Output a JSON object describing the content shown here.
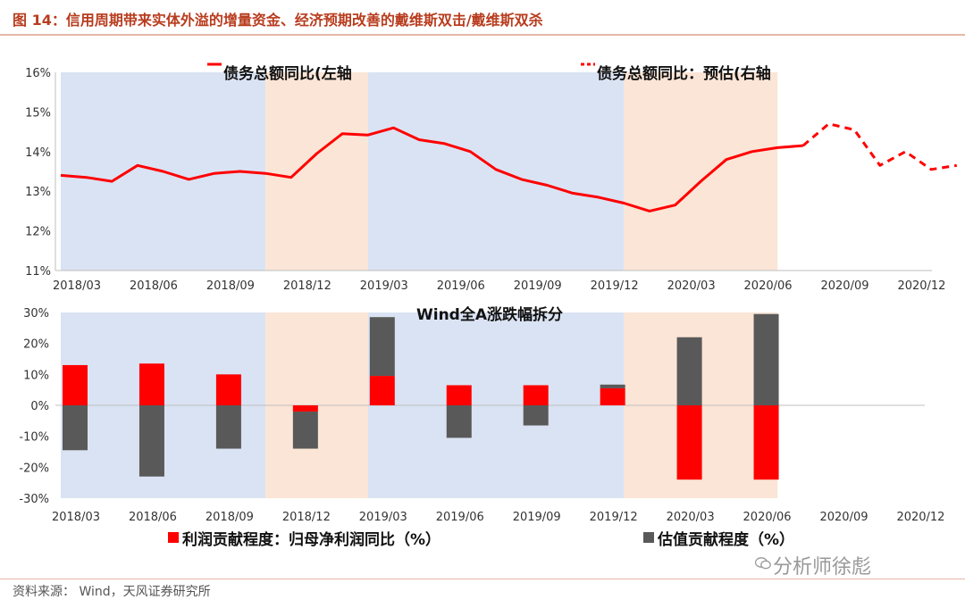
{
  "figure_title": "图 14：信用周期带来实体外溢的增量资金、经济预期改善的戴维斯双击/戴维斯双杀",
  "source_text": "资料来源：   Wind，天风证券研究所",
  "watermark_text": "分析师徐彪",
  "watermark_icon": "wechat-icon",
  "colors": {
    "blue_band": "#dae3f3",
    "orange_band": "#fbe5d6",
    "red": "#ff0000",
    "gray": "#595959",
    "title": "#b83c1e"
  },
  "chart_data": [
    {
      "type": "line",
      "title": "",
      "ylim": [
        11,
        16
      ],
      "y_ticks": [
        "11%",
        "12%",
        "13%",
        "14%",
        "15%",
        "16%"
      ],
      "x_ticks": [
        "2018/03",
        "2018/06",
        "2018/09",
        "2018/12",
        "2019/03",
        "2019/06",
        "2019/09",
        "2019/12",
        "2020/03",
        "2020/06",
        "2020/09",
        "2020/12"
      ],
      "bands": [
        {
          "from": "2018/03",
          "to": "2018/11",
          "color": "blue"
        },
        {
          "from": "2018/11",
          "to": "2019/03",
          "color": "orange"
        },
        {
          "from": "2019/03",
          "to": "2020/01",
          "color": "blue"
        },
        {
          "from": "2020/01",
          "to": "2020/07",
          "color": "orange"
        }
      ],
      "legend": [
        "债务总额同比(左轴",
        "债务总额同比：预估(右轴"
      ],
      "series": [
        {
          "name": "债务总额同比(左轴",
          "style": "solid",
          "points": [
            [
              "2018/03",
              13.4
            ],
            [
              "2018/04",
              13.35
            ],
            [
              "2018/05",
              13.25
            ],
            [
              "2018/06",
              13.65
            ],
            [
              "2018/07",
              13.5
            ],
            [
              "2018/08",
              13.3
            ],
            [
              "2018/09",
              13.45
            ],
            [
              "2018/10",
              13.5
            ],
            [
              "2018/11",
              13.45
            ],
            [
              "2018/12",
              13.35
            ],
            [
              "2019/01",
              13.95
            ],
            [
              "2019/02",
              14.45
            ],
            [
              "2019/03",
              14.42
            ],
            [
              "2019/04",
              14.6
            ],
            [
              "2019/05",
              14.3
            ],
            [
              "2019/06",
              14.2
            ],
            [
              "2019/07",
              14.0
            ],
            [
              "2019/08",
              13.55
            ],
            [
              "2019/09",
              13.3
            ],
            [
              "2019/10",
              13.15
            ],
            [
              "2019/11",
              12.95
            ],
            [
              "2019/12",
              12.85
            ],
            [
              "2020/01",
              12.7
            ],
            [
              "2020/02",
              12.5
            ],
            [
              "2020/03",
              12.65
            ],
            [
              "2020/04",
              13.25
            ],
            [
              "2020/05",
              13.8
            ],
            [
              "2020/06",
              14.0
            ],
            [
              "2020/07",
              14.1
            ],
            [
              "2020/08",
              14.15
            ]
          ]
        },
        {
          "name": "债务总额同比：预估(右轴",
          "style": "dashed",
          "points": [
            [
              "2020/08",
              14.15
            ],
            [
              "2020/09",
              14.7
            ],
            [
              "2020/10",
              14.55
            ],
            [
              "2020/11",
              13.65
            ],
            [
              "2020/12",
              14.0
            ],
            [
              "2021/01",
              13.55
            ],
            [
              "2021/02",
              13.65
            ]
          ]
        }
      ]
    },
    {
      "type": "bar",
      "title": "Wind全A涨跌幅拆分",
      "ylim": [
        -30,
        30
      ],
      "y_ticks": [
        "-30%",
        "-20%",
        "-10%",
        "0%",
        "10%",
        "20%",
        "30%"
      ],
      "categories": [
        "2018/03",
        "2018/06",
        "2018/09",
        "2018/12",
        "2019/03",
        "2019/06",
        "2019/09",
        "2019/12",
        "2020/03",
        "2020/06",
        "2020/09",
        "2020/12"
      ],
      "legend": [
        "利润贡献程度：归母净利润同比（%）",
        "估值贡献程度（%）"
      ],
      "series": [
        {
          "name": "利润贡献程度：归母净利润同比（%）",
          "values": [
            13,
            13.5,
            10,
            -2,
            9.5,
            6.5,
            6.5,
            5.5,
            -24,
            -24,
            null,
            null
          ]
        },
        {
          "name": "估值贡献程度（%）",
          "values": [
            -14.5,
            -23,
            -14,
            -12,
            19,
            -10.5,
            -6.5,
            1.2,
            22,
            29.5,
            null,
            null
          ]
        }
      ]
    }
  ]
}
